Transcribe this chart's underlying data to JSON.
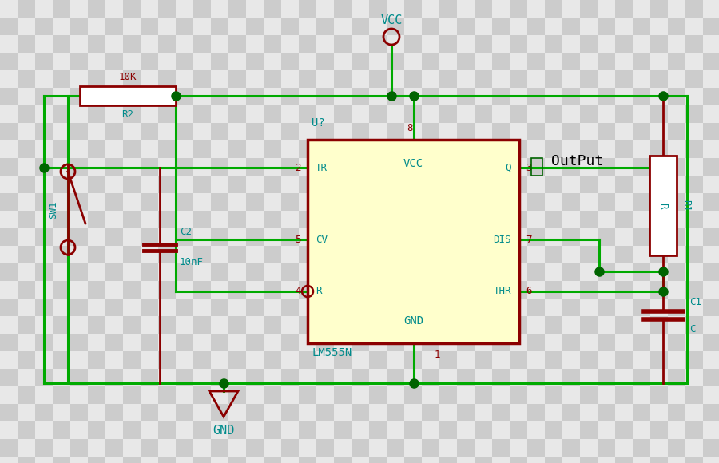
{
  "bg_checker_light": "#e8e8e8",
  "bg_checker_dark": "#cccccc",
  "wire_color": "#00aa00",
  "component_color": "#8b0000",
  "label_color": "#008b8b",
  "output_label_color": "#000000",
  "node_color": "#006400",
  "ic_fill": "#ffffcc",
  "ic_border": "#8b0000",
  "ic_text_color": "#008b8b",
  "vcc_label": "VCC",
  "gnd_label": "GND",
  "ic_name": "LM555N",
  "ic_ref": "U?",
  "ic_pin8_label": "8",
  "ic_pin1_label": "1",
  "ic_center_top": "VCC",
  "ic_center_bot": "GND",
  "r2_label": "10K",
  "r2_ref": "R2",
  "r1_label": "R",
  "r1_ref": "R1",
  "c2_label": "10nF",
  "c2_ref": "C2",
  "c1_label": "C",
  "c1_ref": "C1",
  "sw1_ref": "SW1",
  "output_label": "OutPut"
}
